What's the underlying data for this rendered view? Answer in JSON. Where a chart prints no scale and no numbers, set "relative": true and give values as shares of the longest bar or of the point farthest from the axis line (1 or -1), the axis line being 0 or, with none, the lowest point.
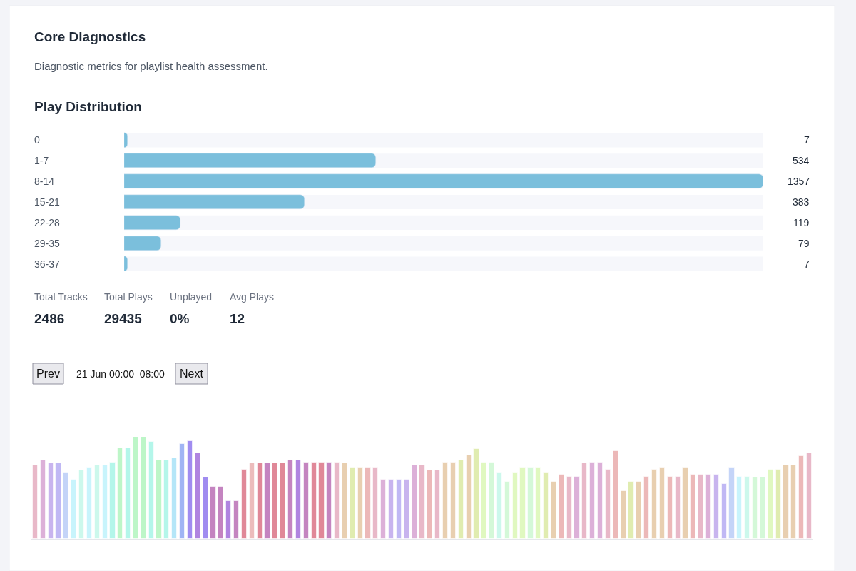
{
  "chart_data": [
    {
      "type": "other",
      "title": "Core Diagnostics",
      "subtitle": "Diagnostic metrics for playlist health assessment."
    },
    {
      "type": "bar",
      "orientation": "horizontal",
      "title": "Play Distribution",
      "categories": [
        "0",
        "1-7",
        "8-14",
        "15-21",
        "22-28",
        "29-35",
        "36-37"
      ],
      "values": [
        7,
        534,
        1357,
        383,
        119,
        79,
        7
      ],
      "color": "#7bbfdc",
      "data_labels": true
    },
    {
      "type": "other",
      "annotations": [
        "Total Tracks",
        "2486",
        "Total Plays",
        "29435",
        "Unplayed",
        "0%",
        "Avg Plays",
        "12"
      ]
    },
    {
      "type": "bar",
      "relative": true,
      "annotations": [
        "Prev",
        "21 Jun 00:00–08:00",
        "Next"
      ],
      "categories": [
        null,
        null,
        null,
        null,
        null,
        null,
        null,
        null,
        null,
        null,
        null,
        null,
        null,
        null,
        null,
        null,
        null,
        null,
        null,
        null,
        null,
        null,
        null,
        null,
        null,
        null,
        null,
        null,
        null,
        null,
        null,
        null,
        null,
        null,
        null,
        null,
        null,
        null,
        null,
        null,
        null,
        null,
        null,
        null,
        null,
        null,
        null,
        null,
        null,
        null,
        null,
        null,
        null,
        null,
        null,
        null,
        null,
        null,
        null,
        null,
        null,
        null,
        null,
        null,
        null,
        null,
        null,
        null,
        null,
        null,
        null,
        null,
        null,
        null,
        null,
        null,
        null,
        null,
        null,
        null,
        null,
        null,
        null,
        null,
        null,
        null,
        null,
        null,
        null,
        null,
        null,
        null,
        null,
        null,
        null,
        null,
        null,
        null,
        null,
        null,
        null
      ],
      "values": [
        0.72,
        0.77,
        0.74,
        0.74,
        0.65,
        0.58,
        0.67,
        0.7,
        0.72,
        0.72,
        0.75,
        0.89,
        0.89,
        1.0,
        1.0,
        0.95,
        0.77,
        0.77,
        0.79,
        0.93,
        0.96,
        0.84,
        0.6,
        0.51,
        0.51,
        0.37,
        0.37,
        0.68,
        0.74,
        0.74,
        0.74,
        0.74,
        0.74,
        0.77,
        0.77,
        0.75,
        0.75,
        0.75,
        0.75,
        0.75,
        0.74,
        0.7,
        0.7,
        0.7,
        0.7,
        0.58,
        0.58,
        0.58,
        0.58,
        0.72,
        0.72,
        0.67,
        0.67,
        0.75,
        0.75,
        0.77,
        0.82,
        0.88,
        0.75,
        0.75,
        0.65,
        0.56,
        0.65,
        0.7,
        0.7,
        0.7,
        0.65,
        0.56,
        0.63,
        0.61,
        0.61,
        0.74,
        0.75,
        0.75,
        0.68,
        0.86,
        0.47,
        0.56,
        0.56,
        0.61,
        0.68,
        0.7,
        0.61,
        0.61,
        0.7,
        0.63,
        0.63,
        0.63,
        0.63,
        0.54,
        0.7,
        0.61,
        0.61,
        0.6,
        0.6,
        0.68,
        0.68,
        0.72,
        0.72,
        0.81,
        0.84
      ],
      "colors": [
        "#e8b8c8",
        "#dcb0d8",
        "#c8b4ee",
        "#c0b8f4",
        "#c4d4f8",
        "#c8f4fc",
        "#ccf8ec",
        "#c8f4fc",
        "#ccf8ec",
        "#c8f4fc",
        "#b4f6ea",
        "#bdf6c8",
        "#b4f6ea",
        "#bdf6c8",
        "#bdf6c8",
        "#b4f6ea",
        "#bdf6c8",
        "#b4f6ea",
        "#b4e6f8",
        "#a0b4f4",
        "#a08cf0",
        "#b084e0",
        "#a08cf0",
        "#c484c0",
        "#c484c0",
        "#b084e0",
        "#c484c0",
        "#e08898",
        "#ecbcbc",
        "#e08898",
        "#c484c0",
        "#e08898",
        "#e08898",
        "#c484c0",
        "#b084e0",
        "#c484c0",
        "#e08898",
        "#e08898",
        "#c484c0",
        "#e8b8c8",
        "#e8cfb0",
        "#e0ecb0",
        "#e8cfb0",
        "#ecb8b8",
        "#e8b8c8",
        "#dcb0d8",
        "#c8b4ee",
        "#c0b8f4",
        "#c8b4ee",
        "#dcb0d8",
        "#e8b8c8",
        "#ecb8b8",
        "#e8b8c8",
        "#e8cfb0",
        "#e8cfb0",
        "#e0ecb0",
        "#e8cfb0",
        "#e0ecb0",
        "#e0f8c0",
        "#d4f8d8",
        "#ccf8ec",
        "#d4f8d8",
        "#e0f8c0",
        "#e0f8c0",
        "#d4f8d8",
        "#e0f8c0",
        "#e0ecb0",
        "#e8cfb0",
        "#ecb8b8",
        "#e8b8c8",
        "#dcb0d8",
        "#e8b8c8",
        "#dcb0d8",
        "#dcb0d8",
        "#e8b8c8",
        "#ecb8b8",
        "#e8cfb0",
        "#e0ecb0",
        "#e8cfb0",
        "#ecb8b8",
        "#e8cfb0",
        "#e8cfb0",
        "#ecb8b8",
        "#e8b8c8",
        "#e8cfb0",
        "#ecb8b8",
        "#e8b8c8",
        "#dcb0d8",
        "#c8b4ee",
        "#c0b8f4",
        "#c4d4f8",
        "#c8f4fc",
        "#ccf8ec",
        "#d4f8d8",
        "#d4f8d8",
        "#e0f8c0",
        "#e0ecb0",
        "#e8cfb0",
        "#e8cfb0",
        "#ecb8b8",
        "#e8b8c8"
      ]
    }
  ]
}
